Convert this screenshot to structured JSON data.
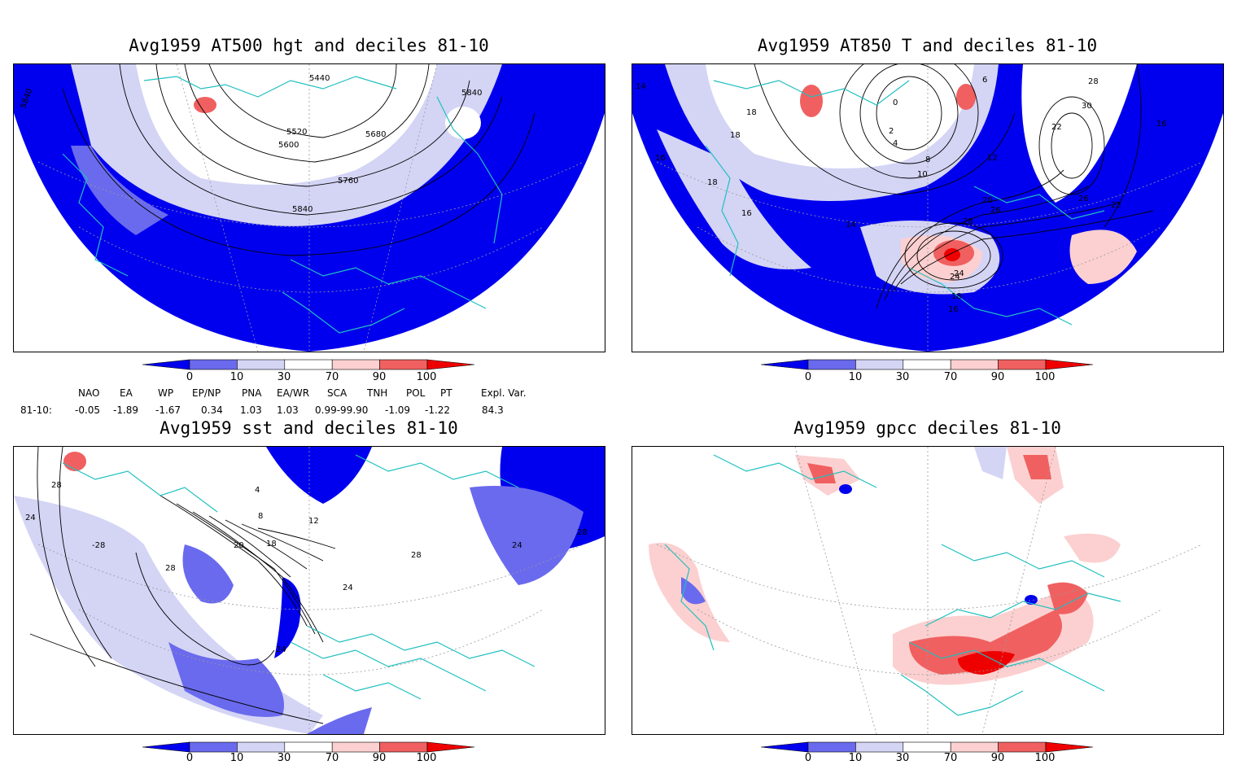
{
  "panels": [
    {
      "title": "Avg1959 AT500 hgt and deciles 81-10",
      "contour_labels": [
        "5440",
        "5840",
        "5840",
        "5520",
        "5600",
        "5680",
        "5760",
        "5840"
      ]
    },
    {
      "title": "Avg1959 AT850 T and deciles 81-10",
      "contour_labels": [
        "14",
        "18",
        "18",
        "16",
        "18",
        "16",
        "14",
        "12",
        "10",
        "8",
        "6",
        "4",
        "2",
        "0",
        "22",
        "24",
        "26",
        "28",
        "30",
        "16",
        "16",
        "18",
        "20",
        "22",
        "24",
        "26",
        "28"
      ]
    },
    {
      "title": "Avg1959 sst and deciles 81-10",
      "contour_labels": [
        "28",
        "24",
        "-28",
        "28",
        "20",
        "18",
        "8",
        "12",
        "4",
        "24",
        "28",
        "24",
        "28",
        "24"
      ]
    },
    {
      "title": "Avg1959 gpcc deciles 81-10",
      "contour_labels": []
    }
  ],
  "colorbar": {
    "labels": [
      "0",
      "10",
      "30",
      "70",
      "90",
      "100"
    ],
    "colors": [
      "#0000ee",
      "#6a6aee",
      "#d4d4f5",
      "#ffffff",
      "#fcd0d0",
      "#f06060",
      "#ee0000"
    ]
  },
  "teleconnections": {
    "headers": [
      "NAO",
      "EA",
      "WP",
      "EP/NP",
      "PNA",
      "EA/WR",
      "SCA",
      "TNH",
      "POL",
      "PT",
      "Expl. Var."
    ],
    "row_label": "81-10:",
    "values": [
      "-0.05",
      "-1.89",
      "-1.67",
      "0.34",
      "1.03",
      "1.03",
      "0.99-99.90",
      "-1.09",
      "-1.22",
      "",
      "84.3"
    ]
  }
}
